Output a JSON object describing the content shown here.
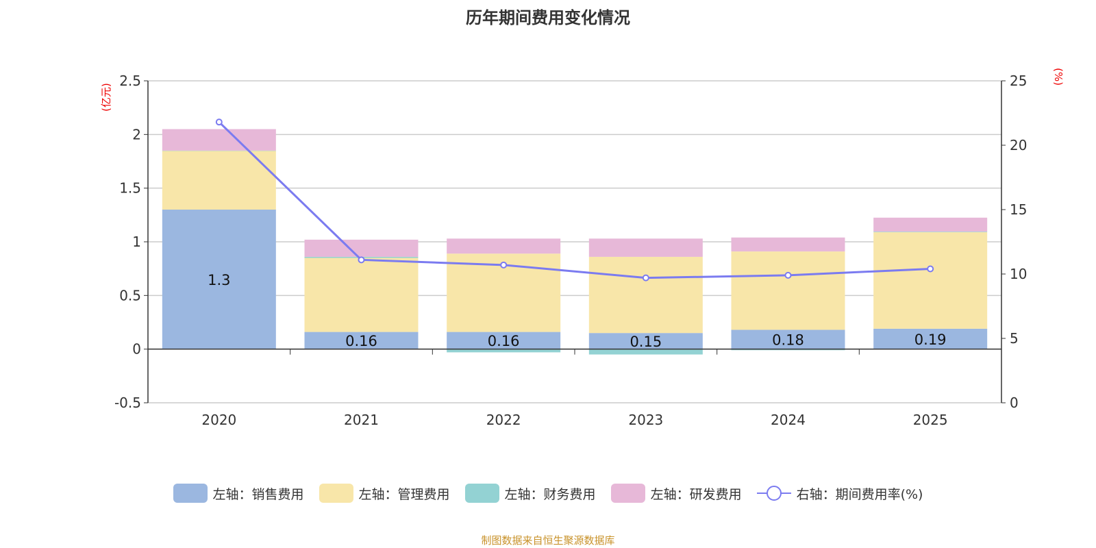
{
  "chart_data": {
    "type": "bar",
    "title": "历年期间费用变化情况",
    "categories": [
      "2020",
      "2021",
      "2022",
      "2023",
      "2024",
      "2025"
    ],
    "left_axis": {
      "label": "(亿元)",
      "ylim": [
        -0.5,
        2.5
      ],
      "ticks": [
        "-0.5",
        "0",
        "0.5",
        "1",
        "1.5",
        "2",
        "2.5"
      ]
    },
    "right_axis": {
      "label": "(%)",
      "ylim": [
        0,
        25
      ],
      "ticks": [
        "0",
        "5",
        "10",
        "15",
        "20",
        "25"
      ]
    },
    "series": [
      {
        "name": "左轴：销售费用",
        "type": "bar",
        "color": "#9bb7e0",
        "values": [
          1.3,
          0.16,
          0.16,
          0.15,
          0.18,
          0.19
        ],
        "labels": [
          "1.3",
          "0.16",
          "0.16",
          "0.15",
          "0.18",
          "0.19"
        ]
      },
      {
        "name": "左轴：管理费用",
        "type": "bar",
        "color": "#f8e6a9",
        "values": [
          0.55,
          0.69,
          0.73,
          0.71,
          0.73,
          0.9
        ]
      },
      {
        "name": "左轴：财务费用",
        "type": "bar",
        "color": "#93d2d3",
        "values": [
          0.0,
          0.01,
          -0.03,
          -0.05,
          -0.01,
          0.005
        ]
      },
      {
        "name": "左轴：研发费用",
        "type": "bar",
        "color": "#e7b8d8",
        "values": [
          0.2,
          0.16,
          0.14,
          0.17,
          0.13,
          0.13
        ]
      },
      {
        "name": "右轴：期间费用率(%)",
        "type": "line",
        "color": "#7b7bf0",
        "values": [
          21.8,
          11.1,
          10.7,
          9.7,
          9.9,
          10.4
        ]
      }
    ],
    "grid": true,
    "legend_position": "bottom"
  },
  "source": "制图数据来自恒生聚源数据库"
}
